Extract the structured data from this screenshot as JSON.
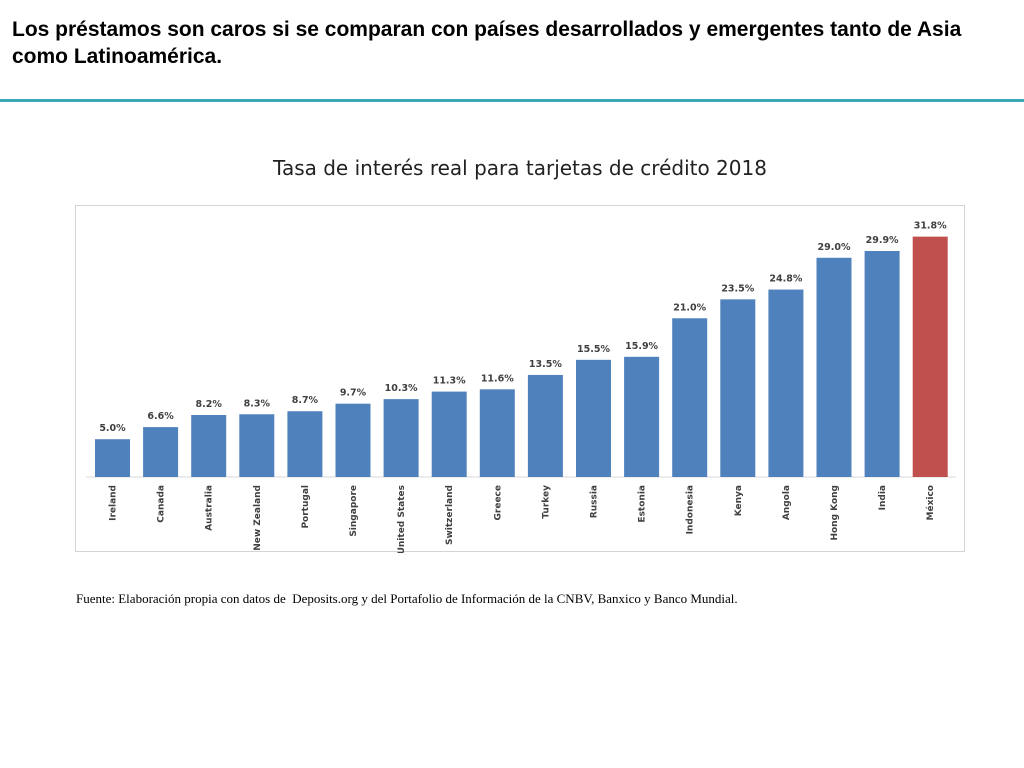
{
  "header": {
    "title": "Los préstamos son caros si se comparan con países desarrollados y emergentes tanto de Asia como Latinoamérica."
  },
  "colors": {
    "accent_rule": "#3aa9b7",
    "bar_default": "#4f81bd",
    "bar_highlight": "#c0504d"
  },
  "chart_data": {
    "type": "bar",
    "title": "Tasa de interés real para tarjetas de crédito 2018",
    "xlabel": "",
    "ylabel": "",
    "categories": [
      "Ireland",
      "Canada",
      "Australia",
      "New Zealand",
      "Portugal",
      "Singapore",
      "United States",
      "Switzerland",
      "Greece",
      "Turkey",
      "Russia",
      "Estonia",
      "Indonesia",
      "Kenya",
      "Angola",
      "Hong Kong",
      "India",
      "México"
    ],
    "values": [
      5.0,
      6.6,
      8.2,
      8.3,
      8.7,
      9.7,
      10.3,
      11.3,
      11.6,
      13.5,
      15.5,
      15.9,
      21.0,
      23.5,
      24.8,
      29.0,
      29.9,
      31.8
    ],
    "data_labels": [
      "5.0%",
      "6.6%",
      "8.2%",
      "8.3%",
      "8.7%",
      "9.7%",
      "10.3%",
      "11.3%",
      "11.6%",
      "13.5%",
      "15.5%",
      "15.9%",
      "21.0%",
      "23.5%",
      "24.8%",
      "29.0%",
      "29.9%",
      "31.8%"
    ],
    "highlight_category": "México",
    "ylim": [
      0,
      34
    ],
    "grid": false,
    "legend": "none"
  },
  "source": {
    "text": "Fuente: Elaboración propia con datos de  Deposits.org y del Portafolio de Información de la CNBV, Banxico y Banco Mundial."
  }
}
